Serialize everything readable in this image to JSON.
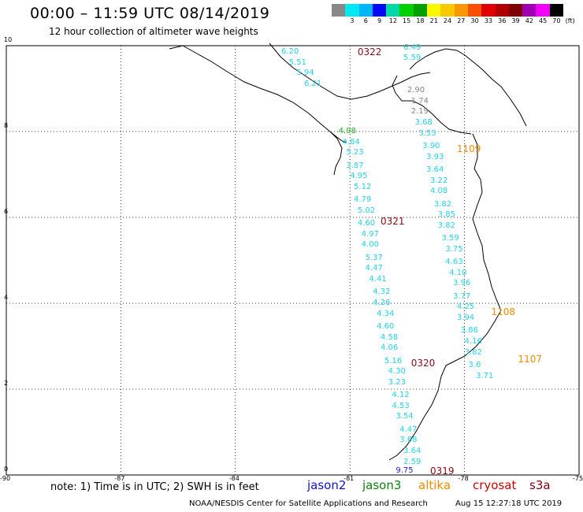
{
  "header": {
    "title": "00:00 – 11:59 UTC 08/14/2019",
    "subtitle": "12 hour collection of altimeter wave heights"
  },
  "colorbar": {
    "colors": [
      "#888888",
      "#00e8f0",
      "#00b4f8",
      "#0008f8",
      "#00d8a8",
      "#00d000",
      "#00a000",
      "#f8f800",
      "#f8c800",
      "#f89800",
      "#f85000",
      "#e00000",
      "#b00000",
      "#800000",
      "#a000b0",
      "#f000f8",
      "#000000"
    ],
    "labels": [
      "",
      "3",
      "6",
      "9",
      "12",
      "15",
      "18",
      "21",
      "24",
      "27",
      "30",
      "33",
      "36",
      "39",
      "42",
      "45",
      "70",
      "(ft)"
    ]
  },
  "axes": {
    "y_ticks": [
      {
        "label": "10",
        "lat": 10
      },
      {
        "label": "8",
        "lat": 8
      },
      {
        "label": "6",
        "lat": 6
      },
      {
        "label": "4",
        "lat": 4
      },
      {
        "label": "2",
        "lat": 2
      },
      {
        "label": "0",
        "lat": 0
      }
    ],
    "x_ticks": [
      {
        "label": "-90",
        "lon": -90
      },
      {
        "label": "-87",
        "lon": -87
      },
      {
        "label": "-84",
        "lon": -84
      },
      {
        "label": "-81",
        "lon": -81
      },
      {
        "label": "-78",
        "lon": -78
      },
      {
        "label": "-75",
        "lon": -75
      }
    ]
  },
  "track_labels": [
    {
      "text": "0322",
      "lon": -80.8,
      "lat": 9.85,
      "color": "red"
    },
    {
      "text": "0321",
      "lon": -80.2,
      "lat": 5.9,
      "color": "red"
    },
    {
      "text": "0320",
      "lon": -79.4,
      "lat": 2.6,
      "color": "red"
    },
    {
      "text": "0319",
      "lon": -78.9,
      "lat": 0.1,
      "color": "red"
    },
    {
      "text": "1109",
      "lon": -78.2,
      "lat": 7.6,
      "color": "orange"
    },
    {
      "text": "1108",
      "lon": -77.3,
      "lat": 3.8,
      "color": "orange"
    },
    {
      "text": "1107",
      "lon": -76.6,
      "lat": 2.7,
      "color": "orange"
    }
  ],
  "wave_heights": [
    {
      "v": "6.20",
      "lon": -82.8,
      "lat": 9.85
    },
    {
      "v": "5.51",
      "lon": -82.6,
      "lat": 9.6
    },
    {
      "v": "5.94",
      "lon": -82.4,
      "lat": 9.35
    },
    {
      "v": "6.21",
      "lon": -82.2,
      "lat": 9.1
    },
    {
      "v": "6.49",
      "lon": -79.6,
      "lat": 9.95
    },
    {
      "v": "5.59",
      "lon": -79.6,
      "lat": 9.7
    },
    {
      "v": "2.90",
      "lon": -79.5,
      "lat": 8.95,
      "color": "grey"
    },
    {
      "v": "1.74",
      "lon": -79.4,
      "lat": 8.7,
      "color": "grey"
    },
    {
      "v": "2.19",
      "lon": -79.4,
      "lat": 8.45,
      "color": "grey"
    },
    {
      "v": "3.68",
      "lon": -79.3,
      "lat": 8.2
    },
    {
      "v": "3.53",
      "lon": -79.2,
      "lat": 7.95
    },
    {
      "v": "3.90",
      "lon": -79.1,
      "lat": 7.65
    },
    {
      "v": "3.93",
      "lon": -79.0,
      "lat": 7.4
    },
    {
      "v": "3.64",
      "lon": -79.0,
      "lat": 7.1
    },
    {
      "v": "3.22",
      "lon": -78.9,
      "lat": 6.85
    },
    {
      "v": "4.08",
      "lon": -78.9,
      "lat": 6.6
    },
    {
      "v": "3.82",
      "lon": -78.8,
      "lat": 6.3
    },
    {
      "v": "3.85",
      "lon": -78.7,
      "lat": 6.05
    },
    {
      "v": "3.82",
      "lon": -78.7,
      "lat": 5.8
    },
    {
      "v": "3.59",
      "lon": -78.6,
      "lat": 5.5
    },
    {
      "v": "3.75",
      "lon": -78.5,
      "lat": 5.25
    },
    {
      "v": "4.63",
      "lon": -78.5,
      "lat": 4.95
    },
    {
      "v": "4.10",
      "lon": -78.4,
      "lat": 4.7
    },
    {
      "v": "3.96",
      "lon": -78.3,
      "lat": 4.45
    },
    {
      "v": "3.77",
      "lon": -78.3,
      "lat": 4.15
    },
    {
      "v": "4.25",
      "lon": -78.2,
      "lat": 3.9
    },
    {
      "v": "3.94",
      "lon": -78.2,
      "lat": 3.65
    },
    {
      "v": "3.86",
      "lon": -78.1,
      "lat": 3.35
    },
    {
      "v": "4.16",
      "lon": -78.0,
      "lat": 3.1
    },
    {
      "v": "3.82",
      "lon": -78.0,
      "lat": 2.85
    },
    {
      "v": "3.6",
      "lon": -77.9,
      "lat": 2.55
    },
    {
      "v": "3.71",
      "lon": -77.7,
      "lat": 2.3
    },
    {
      "v": "4.98",
      "lon": -81.3,
      "lat": 8.0,
      "color": "green"
    },
    {
      "v": "4.84",
      "lon": -81.2,
      "lat": 7.75
    },
    {
      "v": "5.23",
      "lon": -81.1,
      "lat": 7.5
    },
    {
      "v": "3.87",
      "lon": -81.1,
      "lat": 7.2
    },
    {
      "v": "4.95",
      "lon": -81.0,
      "lat": 6.95
    },
    {
      "v": "5.12",
      "lon": -80.9,
      "lat": 6.7
    },
    {
      "v": "4.79",
      "lon": -80.9,
      "lat": 6.4
    },
    {
      "v": "5.02",
      "lon": -80.8,
      "lat": 6.15
    },
    {
      "v": "4.60",
      "lon": -80.8,
      "lat": 5.85
    },
    {
      "v": "4.97",
      "lon": -80.7,
      "lat": 5.6
    },
    {
      "v": "4.00",
      "lon": -80.7,
      "lat": 5.35
    },
    {
      "v": "5.37",
      "lon": -80.6,
      "lat": 5.05
    },
    {
      "v": "4.47",
      "lon": -80.6,
      "lat": 4.8
    },
    {
      "v": "4.41",
      "lon": -80.5,
      "lat": 4.55
    },
    {
      "v": "4.32",
      "lon": -80.4,
      "lat": 4.25
    },
    {
      "v": "4.26",
      "lon": -80.4,
      "lat": 4.0
    },
    {
      "v": "4.34",
      "lon": -80.3,
      "lat": 3.75
    },
    {
      "v": "4.60",
      "lon": -80.3,
      "lat": 3.45
    },
    {
      "v": "4.58",
      "lon": -80.2,
      "lat": 3.2
    },
    {
      "v": "4.06",
      "lon": -80.2,
      "lat": 2.95
    },
    {
      "v": "5.16",
      "lon": -80.1,
      "lat": 2.65
    },
    {
      "v": "4.30",
      "lon": -80.0,
      "lat": 2.4
    },
    {
      "v": "3.23",
      "lon": -80.0,
      "lat": 2.15
    },
    {
      "v": "4.12",
      "lon": -79.9,
      "lat": 1.85
    },
    {
      "v": "4.53",
      "lon": -79.9,
      "lat": 1.6
    },
    {
      "v": "3.54",
      "lon": -79.8,
      "lat": 1.35
    },
    {
      "v": "4.47",
      "lon": -79.7,
      "lat": 1.05
    },
    {
      "v": "3.68",
      "lon": -79.7,
      "lat": 0.8
    },
    {
      "v": "3.64",
      "lon": -79.6,
      "lat": 0.55
    },
    {
      "v": "2.59",
      "lon": -79.6,
      "lat": 0.3
    },
    {
      "v": "9.75",
      "lon": -79.8,
      "lat": 0.1,
      "color": "blue"
    }
  ],
  "footer": {
    "note": "note:  1) Time is in UTC;  2) SWH is in feet",
    "legend": [
      {
        "name": "jason2",
        "color": "#1010d0"
      },
      {
        "name": "jason3",
        "color": "#108010"
      },
      {
        "name": "altika",
        "color": "#f08c00"
      },
      {
        "name": "cryosat",
        "color": "#d00000"
      },
      {
        "name": "s3a",
        "color": "#800010"
      }
    ],
    "credit": "NOAA/NESDIS Center for Satellite Applications and Research",
    "timestamp": "Aug 15 12:27:18 UTC 2019"
  }
}
